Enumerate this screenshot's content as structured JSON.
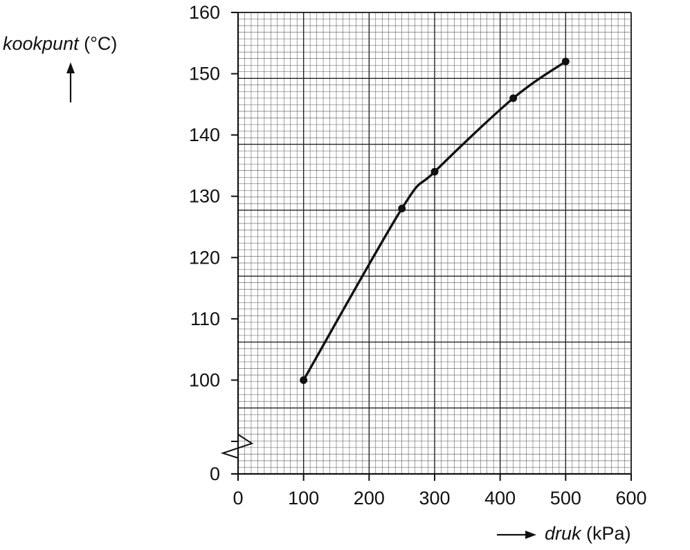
{
  "chart_data": {
    "type": "line",
    "ylabel_var": "kookpunt",
    "ylabel_unit": "(°C)",
    "xlabel_var": "druk",
    "xlabel_unit": "(kPa)",
    "xlim": [
      0,
      600
    ],
    "ylim_display": [
      90,
      160
    ],
    "y_axis_break": true,
    "xticks": [
      "0",
      "100",
      "200",
      "300",
      "400",
      "500",
      "600"
    ],
    "yticks": [
      "0",
      "100",
      "110",
      "120",
      "130",
      "140",
      "150",
      "160"
    ],
    "grid": true,
    "series": [
      {
        "points": [
          {
            "x": 100,
            "y": 100
          },
          {
            "x": 250,
            "y": 128
          },
          {
            "x": 300,
            "y": 134
          },
          {
            "x": 420,
            "y": 146
          },
          {
            "x": 500,
            "y": 152
          }
        ]
      }
    ]
  }
}
